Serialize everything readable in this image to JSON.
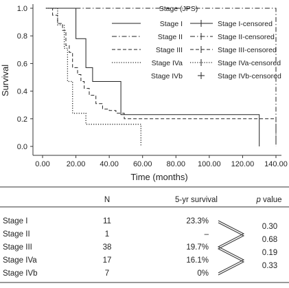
{
  "chart_data": {
    "type": "line",
    "subtype": "kaplan-meier",
    "xlabel": "Time (months)",
    "ylabel": "Survival",
    "xlim": [
      0,
      140
    ],
    "ylim": [
      0,
      1
    ],
    "x_ticks": [
      "0.00",
      "20.00",
      "40.00",
      "60.00",
      "80.00",
      "100.00",
      "120.00",
      "140.00"
    ],
    "y_ticks": [
      "0.0",
      "0.2",
      "0.4",
      "0.6",
      "0.8",
      "1.0"
    ],
    "grid": false,
    "legend": {
      "title": "Stage (JPS)",
      "placement": "top-right",
      "entries": [
        "Stage I",
        "Stage II",
        "Stage III",
        "Stage IVa",
        "Stage IVb"
      ],
      "censored_entries": [
        "Stage I-censored",
        "Stage II-censored",
        "Stage III-censored",
        "Stage IVa-censored",
        "Stage IVb-censored"
      ]
    },
    "series": [
      {
        "name": "Stage I",
        "line": "solid",
        "x": [
          2,
          20,
          20,
          26,
          26,
          30,
          30,
          47,
          47,
          130,
          130
        ],
        "y": [
          1.0,
          1.0,
          0.78,
          0.78,
          0.57,
          0.57,
          0.47,
          0.47,
          0.23,
          0.23,
          0.0
        ],
        "censored": []
      },
      {
        "name": "Stage II",
        "line": "dashdot",
        "x": [
          2,
          140,
          140
        ],
        "y": [
          1.0,
          1.0,
          0.0
        ],
        "censored": []
      },
      {
        "name": "Stage III",
        "line": "dashed",
        "x": [
          2,
          6,
          6,
          9,
          9,
          12,
          12,
          14,
          14,
          16,
          16,
          18,
          18,
          21,
          21,
          23,
          23,
          25,
          25,
          28,
          28,
          32,
          32,
          36,
          36,
          40,
          40,
          44,
          44,
          49,
          49,
          140,
          140
        ],
        "y": [
          1.0,
          1.0,
          0.95,
          0.95,
          0.89,
          0.89,
          0.84,
          0.84,
          0.73,
          0.73,
          0.68,
          0.68,
          0.57,
          0.57,
          0.52,
          0.52,
          0.47,
          0.47,
          0.42,
          0.42,
          0.37,
          0.37,
          0.31,
          0.31,
          0.27,
          0.27,
          0.26,
          0.26,
          0.24,
          0.24,
          0.2,
          0.2,
          0.0
        ],
        "censored": []
      },
      {
        "name": "Stage IVa",
        "line": "dotted",
        "x": [
          2,
          9,
          9,
          13,
          13,
          15,
          15,
          18,
          18,
          26,
          26,
          59,
          59
        ],
        "y": [
          1.0,
          1.0,
          0.88,
          0.88,
          0.71,
          0.71,
          0.47,
          0.47,
          0.24,
          0.24,
          0.16,
          0.16,
          0.0
        ],
        "censored": []
      },
      {
        "name": "Stage IVb",
        "line": "none",
        "x": [],
        "y": [],
        "censored": []
      }
    ]
  },
  "table": {
    "headers": {
      "n": "N",
      "survival": "5-yr survival",
      "p_italic": "p",
      "p_rest": " value"
    },
    "rows": [
      {
        "stage": "Stage I",
        "n": "11",
        "survival": "23.3%"
      },
      {
        "stage": "Stage II",
        "n": "1",
        "survival": "–"
      },
      {
        "stage": "Stage III",
        "n": "38",
        "survival": "19.7%"
      },
      {
        "stage": "Stage IVa",
        "n": "17",
        "survival": "16.1%"
      },
      {
        "stage": "Stage IVb",
        "n": "7",
        "survival": "0%"
      }
    ],
    "p_values": [
      "0.30",
      "0.68",
      "0.19",
      "0.33"
    ]
  }
}
